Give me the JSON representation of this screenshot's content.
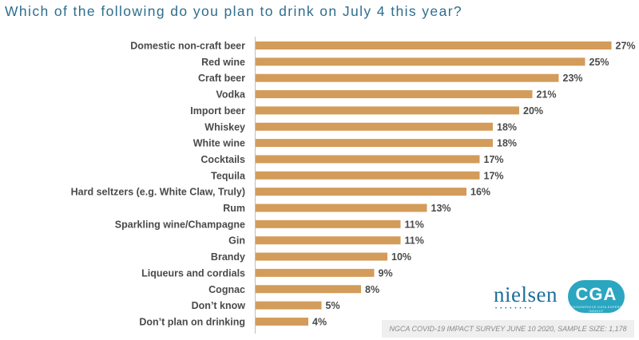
{
  "title": "Which of the following do you plan to drink on July 4 this year?",
  "colors": {
    "bar": "#d39c5a",
    "title": "#2f6e8d",
    "text": "#4a4a4a"
  },
  "chart_data": {
    "type": "bar",
    "orientation": "horizontal",
    "title": "Which of the following do you plan to drink on July 4 this year?",
    "categories": [
      "Domestic non-craft beer",
      "Red wine",
      "Craft beer",
      "Vodka",
      "Import beer",
      "Whiskey",
      "White wine",
      "Cocktails",
      "Tequila",
      "Hard seltzers (e.g. White Claw, Truly)",
      "Rum",
      "Sparkling wine/Champagne",
      "Gin",
      "Brandy",
      "Liqueurs and cordials",
      "Cognac",
      "Don’t know",
      "Don’t plan on drinking"
    ],
    "values": [
      27,
      25,
      23,
      21,
      20,
      18,
      18,
      17,
      17,
      16,
      13,
      11,
      11,
      10,
      9,
      8,
      5,
      4
    ],
    "value_labels": [
      "27%",
      "25%",
      "23%",
      "21%",
      "20%",
      "18%",
      "18%",
      "17%",
      "17%",
      "16%",
      "13%",
      "11%",
      "11%",
      "10%",
      "9%",
      "8%",
      "5%",
      "4%"
    ],
    "unit": "%",
    "grid": false,
    "legend": "none"
  },
  "logos": {
    "nielsen": "nielsen",
    "cga": "CGA",
    "cga_tagline": "FOODSERVICE DATA EXPERT INSIGHT"
  },
  "footnote": "NGCA COVID-19 IMPACT SURVEY JUNE 10 2020, SAMPLE SIZE: 1,178"
}
